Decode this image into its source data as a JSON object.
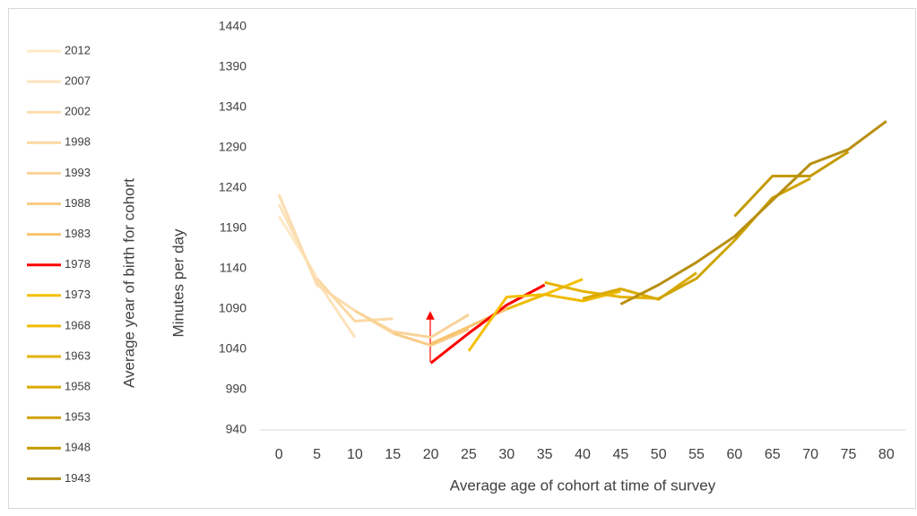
{
  "chart_data": {
    "type": "line",
    "y_label": "Minutes per day",
    "x_label": "Average age of cohort at time of survey",
    "legend_title": "Average year of birth for cohort",
    "xlim": [
      -2.5,
      82.5
    ],
    "xticks": [
      0,
      5,
      10,
      15,
      20,
      25,
      30,
      35,
      40,
      45,
      50,
      55,
      60,
      65,
      70,
      75,
      80
    ],
    "ylim": [
      940,
      1440
    ],
    "yticks": [
      940,
      990,
      1040,
      1090,
      1140,
      1190,
      1240,
      1290,
      1340,
      1390,
      1440
    ],
    "grid": false,
    "legend": "left",
    "series": [
      {
        "name": "2012",
        "color": "#fde9c6",
        "x": [
          0,
          5
        ],
        "values": [
          1205,
          1130
        ]
      },
      {
        "name": "2007",
        "color": "#fde3bb",
        "x": [
          0,
          5,
          10
        ],
        "values": [
          1220,
          1125,
          1055
        ]
      },
      {
        "name": "2002",
        "color": "#fcdcaf",
        "x": [
          0,
          5,
          10,
          15
        ],
        "values": [
          1232,
          1120,
          1088,
          1060
        ]
      },
      {
        "name": "1998",
        "color": "#fbd8a2",
        "x": [
          5,
          10,
          15
        ],
        "values": [
          1128,
          1075,
          1078
        ]
      },
      {
        "name": "1993",
        "color": "#fad398",
        "x": [
          10,
          15,
          20,
          25
        ],
        "values": [
          1088,
          1062,
          1055,
          1083
        ]
      },
      {
        "name": "1988",
        "color": "#f9cb86",
        "x": [
          15,
          20,
          25
        ],
        "values": [
          1060,
          1045,
          1065
        ]
      },
      {
        "name": "1983",
        "color": "#f8c46e",
        "x": [
          20,
          25,
          30
        ],
        "values": [
          1047,
          1068,
          1090
        ]
      },
      {
        "name": "1978",
        "color": "#ff0000",
        "x": [
          20,
          25,
          30,
          35
        ],
        "values": [
          1023,
          1060,
          1095,
          1120
        ]
      },
      {
        "name": "1973",
        "color": "#f5c000",
        "x": [
          25,
          30,
          35,
          40
        ],
        "values": [
          1038,
          1105,
          1108,
          1127
        ]
      },
      {
        "name": "1968",
        "color": "#efba00",
        "x": [
          30,
          35,
          40,
          45
        ],
        "values": [
          1090,
          1108,
          1100,
          1112
        ]
      },
      {
        "name": "1963",
        "color": "#e6b300",
        "x": [
          35,
          40,
          45,
          50
        ],
        "values": [
          1123,
          1112,
          1105,
          1103
        ]
      },
      {
        "name": "1958",
        "color": "#d9aa00",
        "x": [
          40,
          45,
          50,
          55
        ],
        "values": [
          1103,
          1115,
          1102,
          1135
        ]
      },
      {
        "name": "1953",
        "color": "#cfa300",
        "x": [
          50,
          55,
          60,
          65,
          70
        ],
        "values": [
          1103,
          1128,
          1175,
          1228,
          1252
        ]
      },
      {
        "name": "1948",
        "color": "#c49a00",
        "x": [
          60,
          65,
          70,
          75
        ],
        "values": [
          1205,
          1255,
          1255,
          1285
        ]
      },
      {
        "name": "1943",
        "color": "#b88f10",
        "x": [
          45,
          50,
          55,
          60,
          65,
          70,
          75,
          80
        ],
        "values": [
          1096,
          1120,
          1148,
          1180,
          1225,
          1270,
          1288,
          1323
        ]
      }
    ]
  }
}
